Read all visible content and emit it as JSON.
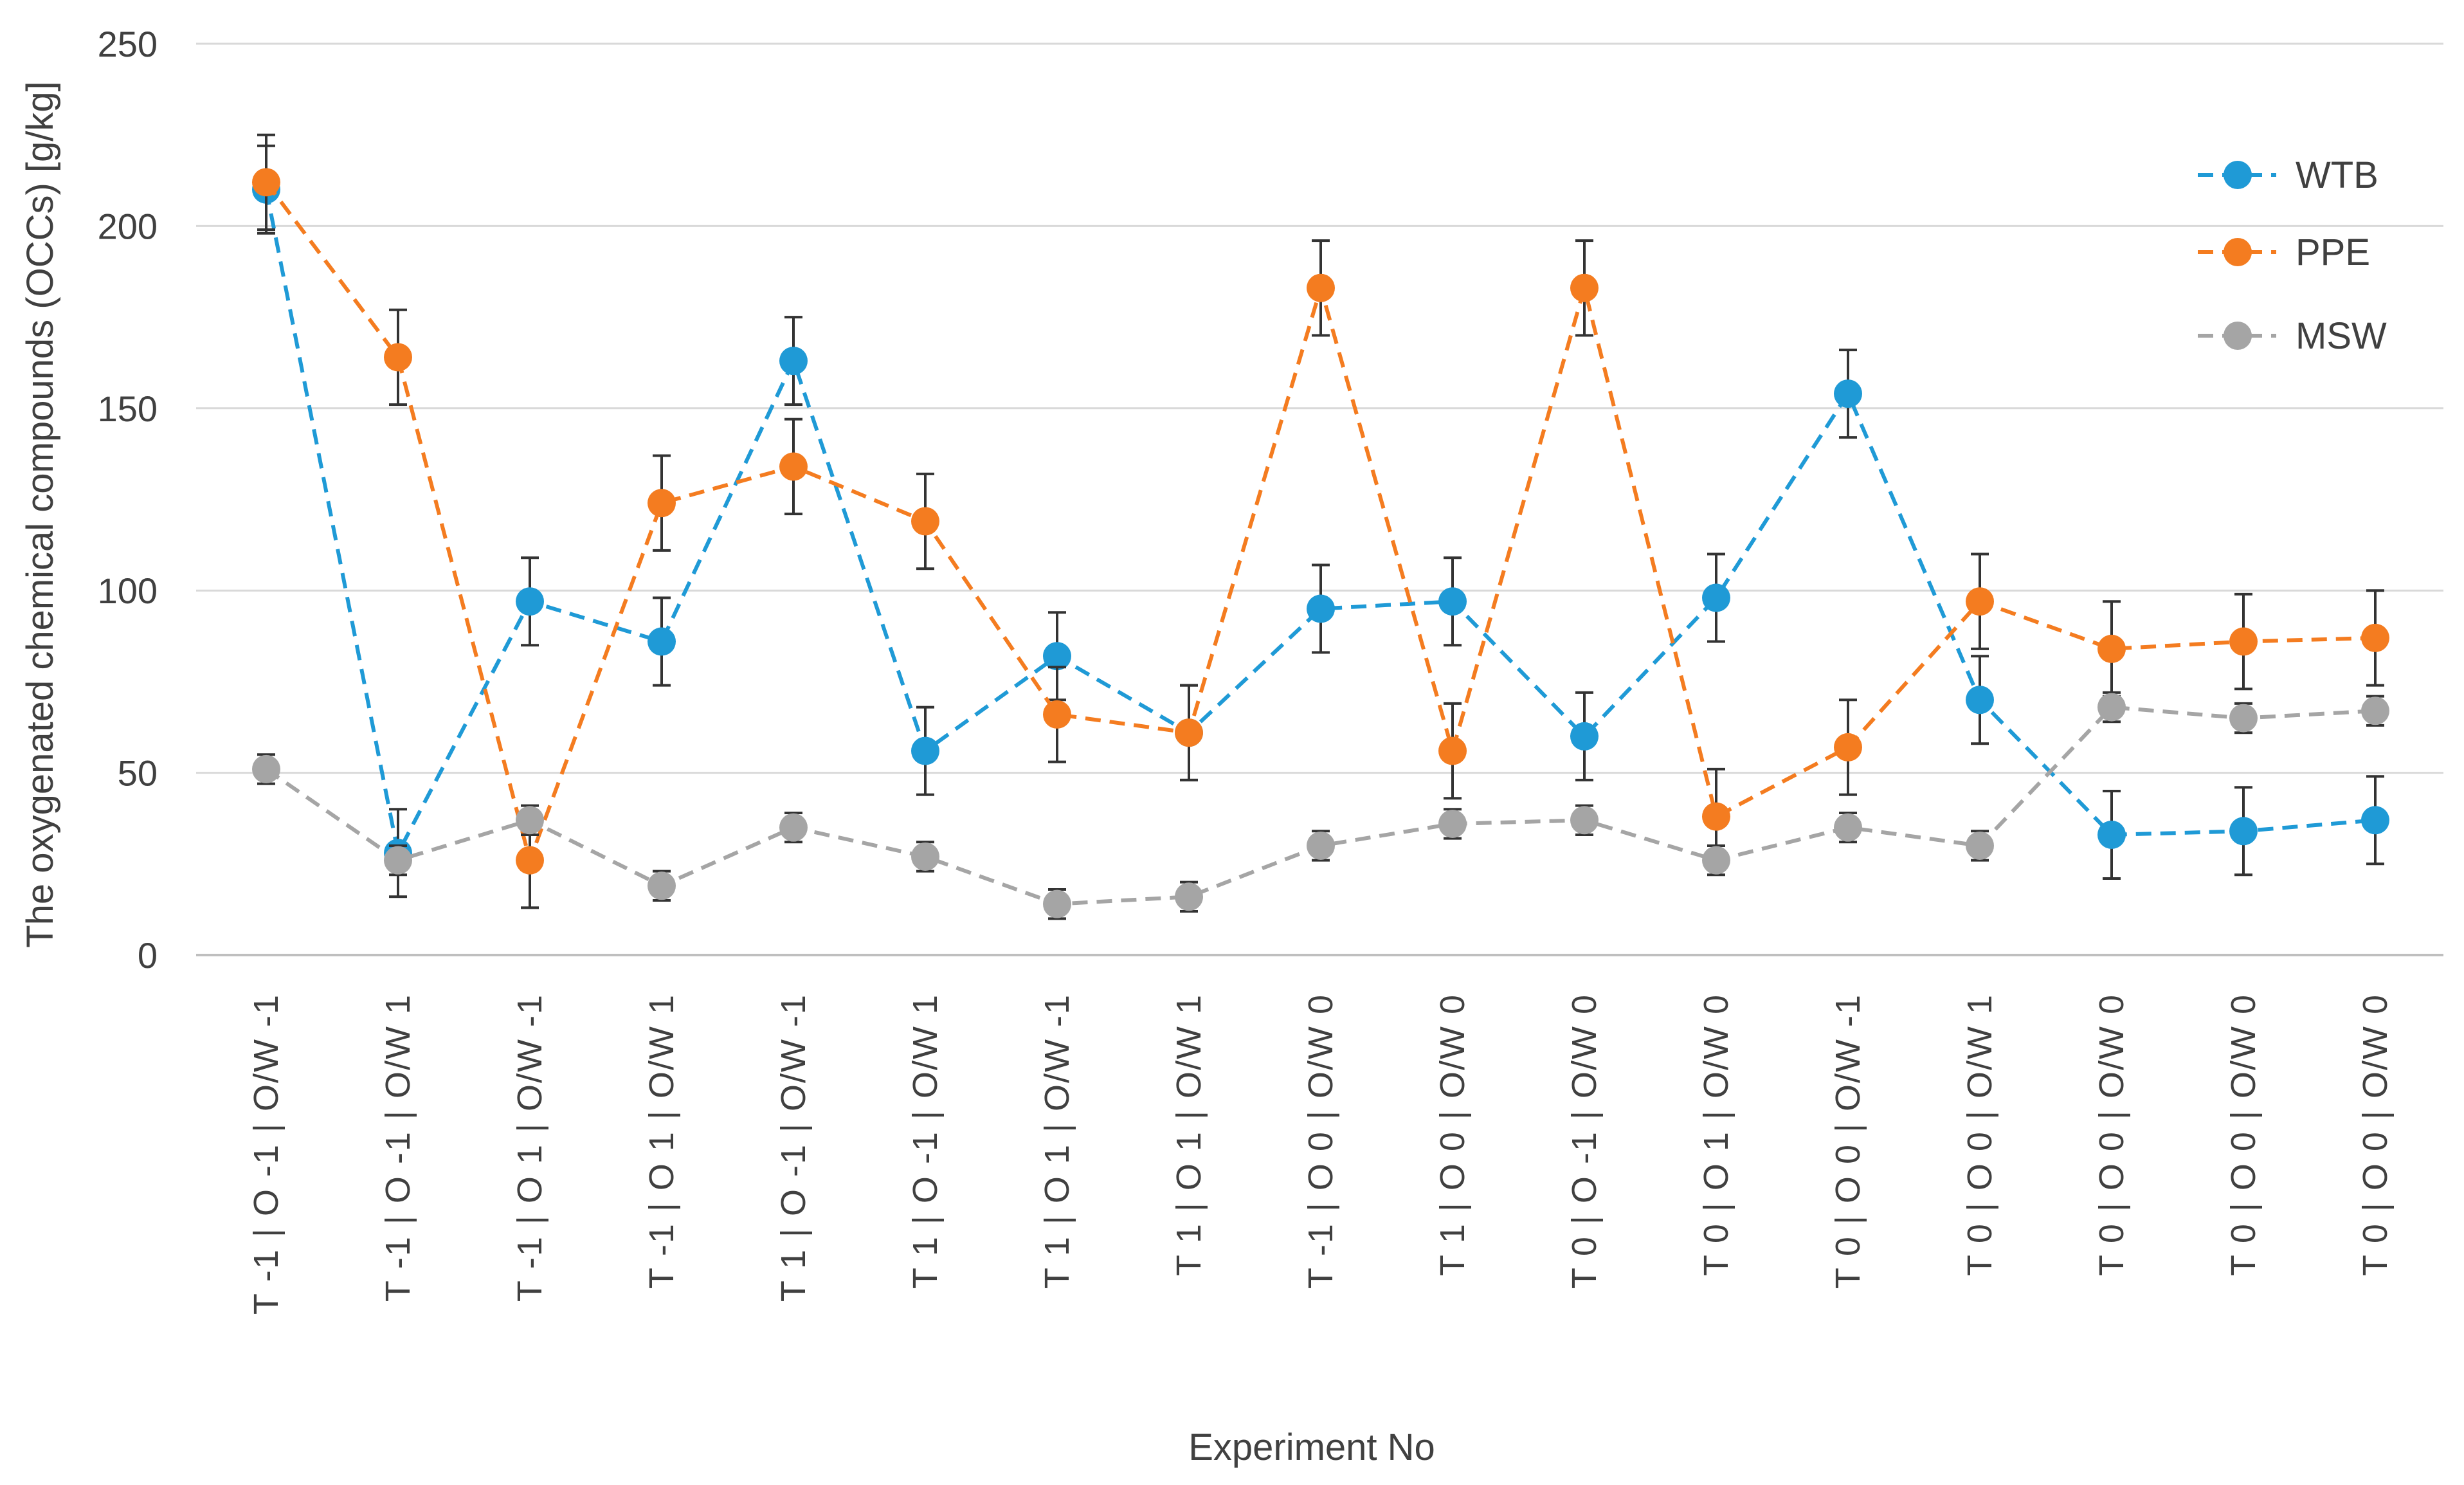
{
  "chart_data": {
    "type": "line",
    "title": "",
    "xlabel": "Experiment No",
    "ylabel": "The oxygenated chemical compounds (OCCs) [g/kg]",
    "ylim": [
      0,
      250
    ],
    "yticks": [
      0,
      50,
      100,
      150,
      200,
      250
    ],
    "grid": true,
    "legend_position": "right",
    "categories": [
      "T -1 | O -1 | O/W -1",
      "T -1 | O -1 | O/W 1",
      "T -1 | O 1 | O/W -1",
      "T -1 | O 1 | O/W 1",
      "T 1 | O -1 | O/W -1",
      "T 1 | O -1 | O/W 1",
      "T 1 | O 1 | O/W -1",
      "T 1 | O 1 | O/W 1",
      "T -1 | O 0 | O/W 0",
      "T 1 | O 0 | O/W 0",
      "T 0 | O -1 | O/W 0",
      "T 0 | O 1 | O/W 0",
      "T 0 | O 0 | O/W -1",
      "T 0 | O 0 | O/W 1",
      "T 0 | O 0 | O/W 0",
      "T 0 | O 0 | O/W 0",
      "T 0 | O 0 | O/W 0"
    ],
    "series": [
      {
        "name": "WTB",
        "color": "#1f9ad6",
        "values": [
          210,
          28,
          97,
          86,
          163,
          56,
          82,
          61,
          95,
          97,
          60,
          98,
          154,
          70,
          33,
          34,
          37
        ],
        "errors": [
          12,
          12,
          12,
          12,
          12,
          12,
          12,
          13,
          12,
          12,
          12,
          12,
          12,
          12,
          12,
          12,
          12
        ]
      },
      {
        "name": "PPE",
        "color": "#f47c20",
        "values": [
          212,
          164,
          26,
          124,
          134,
          119,
          66,
          61,
          183,
          56,
          183,
          38,
          57,
          97,
          84,
          86,
          87
        ],
        "errors": [
          13,
          13,
          13,
          13,
          13,
          13,
          13,
          13,
          13,
          13,
          13,
          13,
          13,
          13,
          13,
          13,
          13
        ]
      },
      {
        "name": "MSW",
        "color": "#a5a5a5",
        "values": [
          51,
          26,
          37,
          19,
          35,
          27,
          14,
          16,
          30,
          36,
          37,
          26,
          35,
          30,
          68,
          65,
          67
        ],
        "errors": [
          4,
          4,
          4,
          4,
          4,
          4,
          4,
          4,
          4,
          4,
          4,
          4,
          4,
          4,
          4,
          4,
          4
        ]
      }
    ]
  }
}
